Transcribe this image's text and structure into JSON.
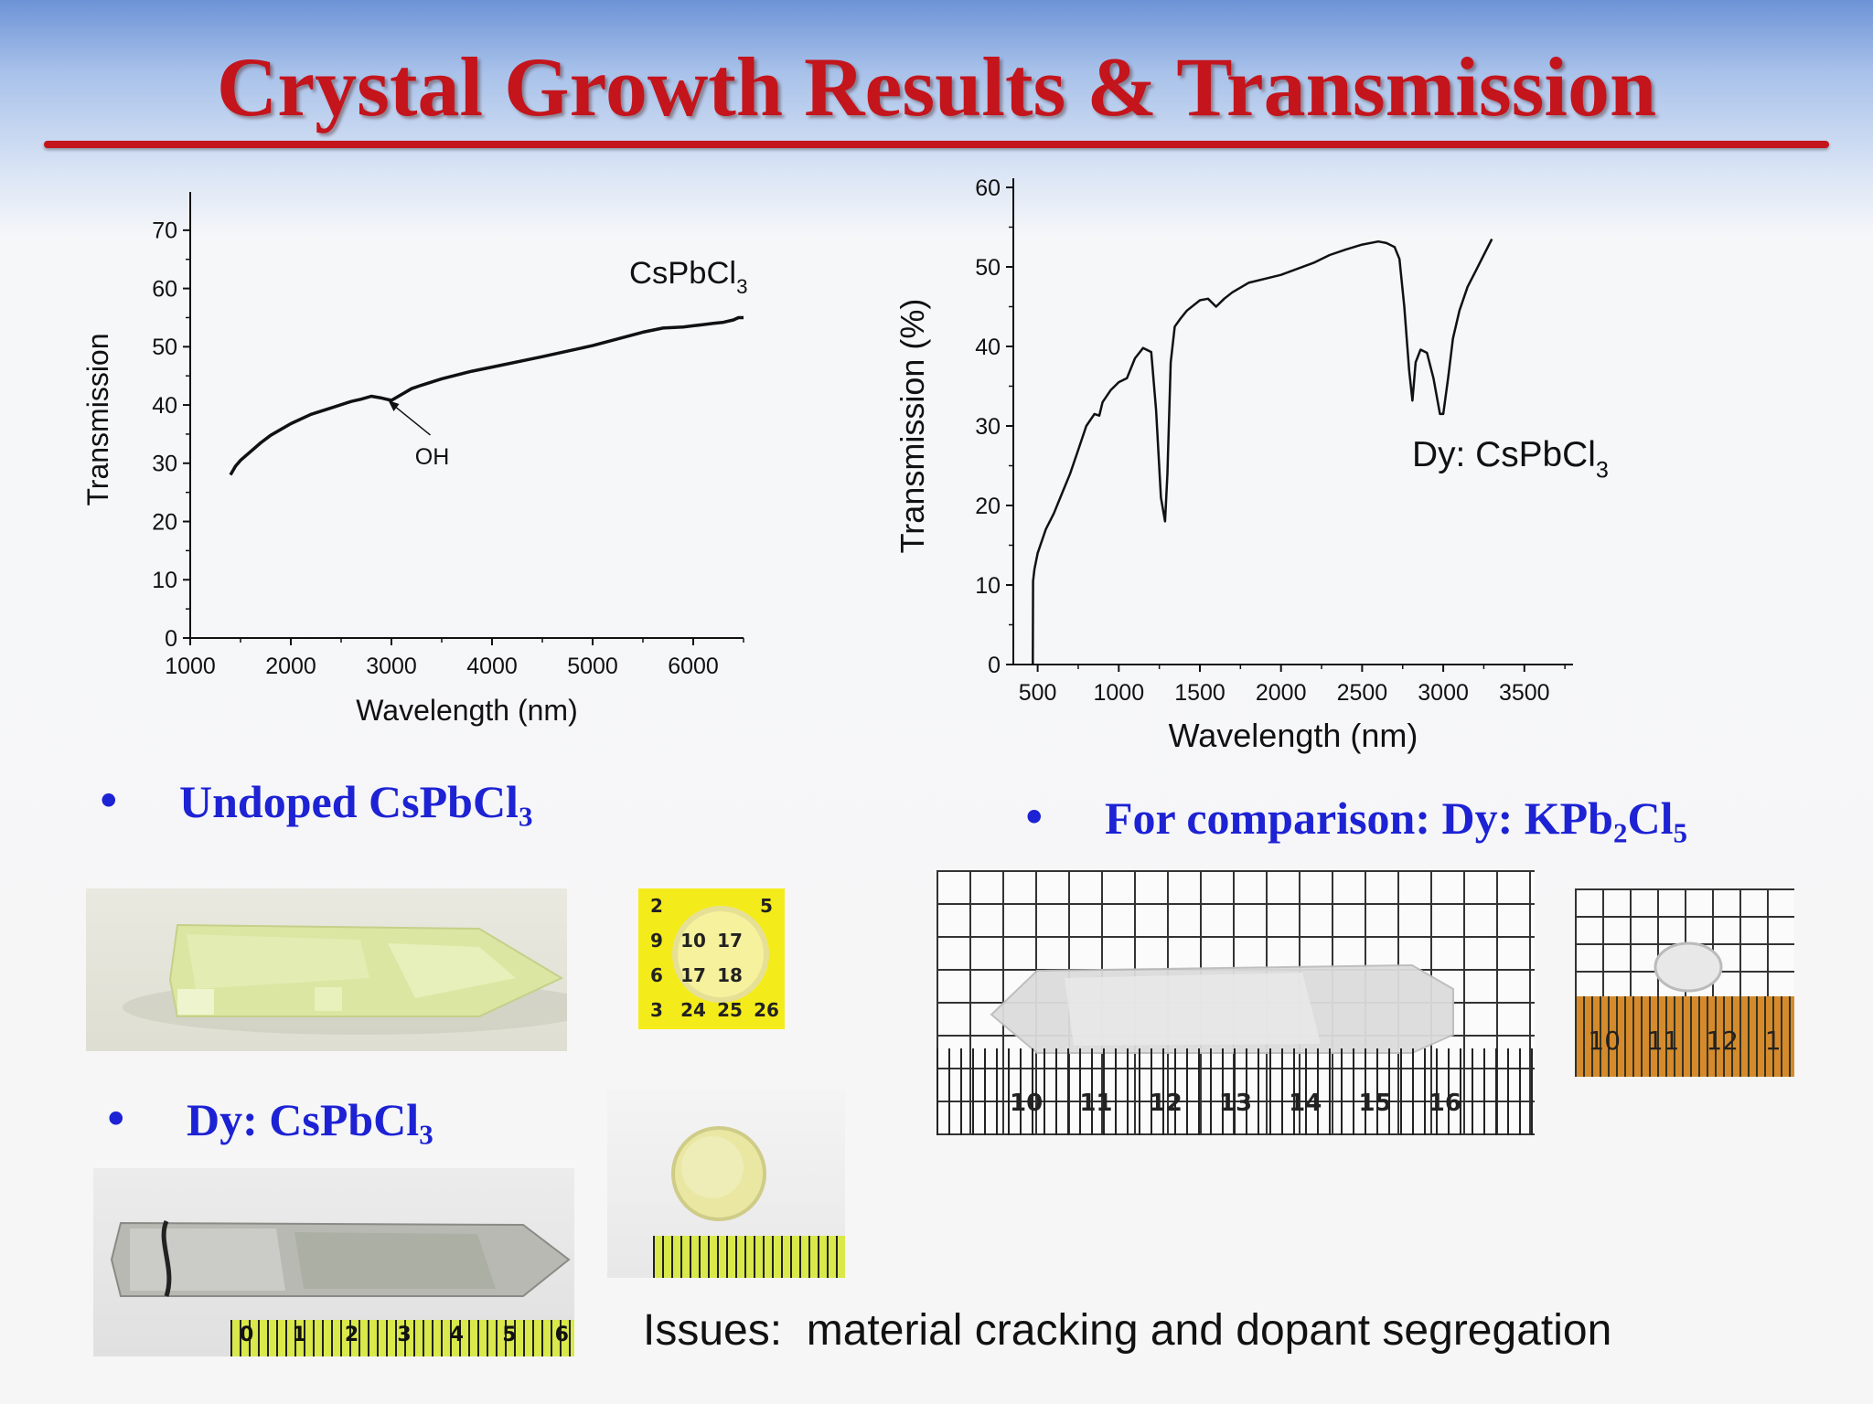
{
  "title": "Crystal Growth Results & Transmission",
  "chart_data": [
    {
      "type": "line",
      "xlabel": "Wavelength (nm)",
      "ylabel": "Transmission",
      "xlim": [
        1000,
        6500
      ],
      "ylim": [
        0,
        75
      ],
      "xticks": [
        1000,
        2000,
        3000,
        4000,
        5000,
        6000
      ],
      "yticks": [
        0,
        10,
        20,
        30,
        40,
        50,
        60,
        70
      ],
      "label": "CsPbCl",
      "label_sub": "3",
      "annotation": "OH",
      "annotation_point": [
        2950,
        40.8
      ],
      "series": [
        {
          "x": [
            1400,
            1450,
            1500,
            1600,
            1700,
            1800,
            2000,
            2200,
            2400,
            2600,
            2700,
            2800,
            2900,
            3000,
            3100,
            3200,
            3300,
            3500,
            3800,
            4000,
            4500,
            5000,
            5500,
            5700,
            5900,
            6000,
            6100,
            6200,
            6300,
            6400,
            6450,
            6500
          ],
          "y": [
            28,
            29.5,
            30.5,
            32,
            33.5,
            34.8,
            36.8,
            38.4,
            39.5,
            40.6,
            41,
            41.5,
            41.2,
            40.8,
            41.8,
            42.8,
            43.4,
            44.5,
            45.8,
            46.5,
            48.3,
            50.2,
            52.5,
            53.2,
            53.4,
            53.6,
            53.8,
            54,
            54.2,
            54.6,
            55,
            55
          ]
        }
      ]
    },
    {
      "type": "line",
      "xlabel": "Wavelength (nm)",
      "ylabel": "Transmission (%)",
      "xlim": [
        350,
        3800
      ],
      "ylim": [
        0,
        60
      ],
      "xticks": [
        500,
        1000,
        1500,
        2000,
        2500,
        3000,
        3500
      ],
      "yticks": [
        0,
        10,
        20,
        30,
        40,
        50,
        60
      ],
      "label": "Dy: CsPbCl",
      "label_sub": "3",
      "series": [
        {
          "x": [
            470,
            472,
            480,
            500,
            550,
            600,
            650,
            700,
            750,
            800,
            850,
            880,
            900,
            950,
            1000,
            1050,
            1100,
            1150,
            1200,
            1230,
            1260,
            1285,
            1300,
            1320,
            1345,
            1380,
            1420,
            1500,
            1550,
            1600,
            1650,
            1700,
            1800,
            2000,
            2200,
            2300,
            2400,
            2500,
            2600,
            2650,
            2700,
            2730,
            2760,
            2790,
            2810,
            2830,
            2860,
            2900,
            2940,
            2980,
            3000,
            3030,
            3060,
            3100,
            3150,
            3200,
            3250,
            3300
          ],
          "y": [
            0,
            10.5,
            12,
            14,
            17,
            19,
            21.5,
            24,
            27,
            30,
            31.5,
            31.3,
            33,
            34.5,
            35.5,
            36,
            38.5,
            39.8,
            39.3,
            32,
            21,
            18,
            24,
            38,
            42.5,
            43.5,
            44.5,
            45.8,
            46,
            45,
            46,
            46.8,
            48,
            49,
            50.5,
            51.5,
            52.2,
            52.8,
            53.2,
            53,
            52.5,
            51,
            45,
            37,
            33.2,
            38,
            39.6,
            39.2,
            36,
            31.5,
            31.5,
            36,
            41,
            44.5,
            47.5,
            49.5,
            51.5,
            53.5
          ]
        }
      ]
    }
  ],
  "bullets": {
    "undoped": {
      "dot": "•",
      "text": "Undoped CsPbCl",
      "sub": "3"
    },
    "dy": {
      "dot": "•",
      "text": "Dy: CsPbCl",
      "sub": "3"
    },
    "comparison": {
      "dot": "•",
      "text": "For comparison: Dy: KPb",
      "sub": "2",
      "text2": "Cl",
      "sub2": "5"
    }
  },
  "grid_numbers": [
    [
      "2",
      "",
      "",
      "5"
    ],
    [
      "9",
      "10",
      "17",
      ""
    ],
    [
      "6",
      "17",
      "18",
      ""
    ],
    [
      "3",
      "24",
      "25",
      "26"
    ]
  ],
  "ruler1": [
    "10",
    "11",
    "12",
    "13",
    "14",
    "15",
    "16"
  ],
  "ruler2": [
    "10",
    "11",
    "12",
    "1"
  ],
  "ruler3": [
    "0",
    "1",
    "2",
    "3",
    "4",
    "5",
    "6"
  ],
  "issues": "Issues:  material cracking and dopant segregation"
}
